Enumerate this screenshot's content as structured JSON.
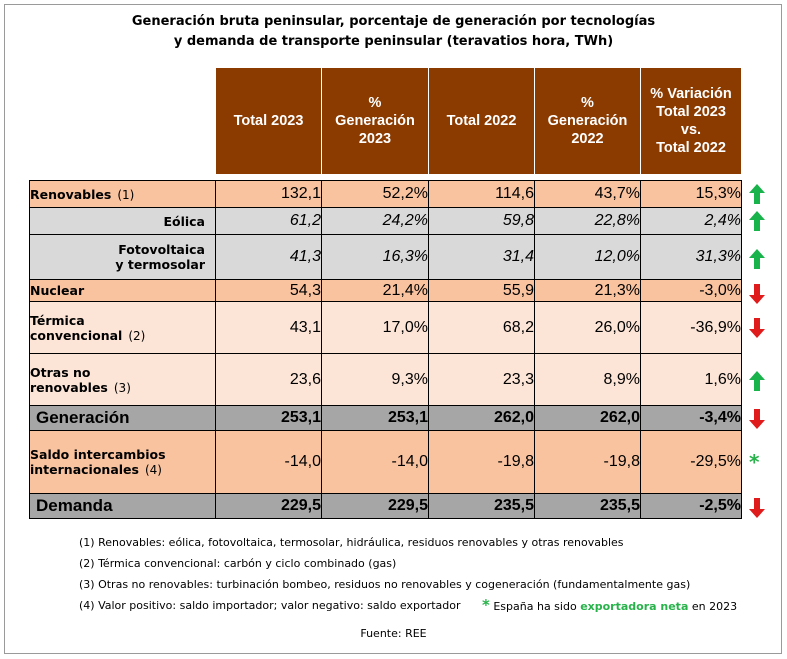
{
  "title": {
    "line1": "Generación bruta peninsular, porcentaje de generación por tecnologías",
    "line2": "y demanda de transporte peninsular (teravatios hora, TWh)"
  },
  "headers": {
    "total2023": "Total 2023",
    "pct2023": [
      "%",
      "Generación",
      "2023"
    ],
    "total2022": "Total 2022",
    "pct2022": [
      "%",
      "Generación",
      "2022"
    ],
    "variation": [
      "% Variación",
      "Total 2023",
      "vs.",
      "Total 2022"
    ]
  },
  "rows": [
    {
      "label": [
        "Renovables"
      ],
      "ref": "(1)",
      "t23": "132,1",
      "p23": "52,2%",
      "t22": "114,6",
      "p22": "43,7%",
      "var": "15,3%",
      "trend": "up"
    },
    {
      "label": [
        "Eólica"
      ],
      "ref": "",
      "t23": "61,2",
      "p23": "24,2%",
      "t22": "59,8",
      "p22": "22,8%",
      "var": "2,4%",
      "trend": "up"
    },
    {
      "label": [
        "Fotovoltaica",
        "y termosolar"
      ],
      "ref": "",
      "t23": "41,3",
      "p23": "16,3%",
      "t22": "31,4",
      "p22": "12,0%",
      "var": "31,3%",
      "trend": "up"
    },
    {
      "label": [
        "Nuclear"
      ],
      "ref": "",
      "t23": "54,3",
      "p23": "21,4%",
      "t22": "55,9",
      "p22": "21,3%",
      "var": "-3,0%",
      "trend": "down"
    },
    {
      "label": [
        "Térmica",
        "convencional"
      ],
      "ref": "(2)",
      "t23": "43,1",
      "p23": "17,0%",
      "t22": "68,2",
      "p22": "26,0%",
      "var": "-36,9%",
      "trend": "down"
    },
    {
      "label": [
        "Otras no",
        "renovables"
      ],
      "ref": "(3)",
      "t23": "23,6",
      "p23": "9,3%",
      "t22": "23,3",
      "p22": "8,9%",
      "var": "1,6%",
      "trend": "up"
    },
    {
      "label": [
        "Generación"
      ],
      "ref": "",
      "t23": "253,1",
      "p23": "253,1",
      "t22": "262,0",
      "p22": "262,0",
      "var": "-3,4%",
      "trend": "down"
    },
    {
      "label": [
        "Saldo intercambios",
        "internacionales"
      ],
      "ref": "(4)",
      "t23": "-14,0",
      "p23": "-14,0",
      "t22": "-19,8",
      "p22": "-19,8",
      "var": "-29,5%",
      "trend": "star"
    },
    {
      "label": [
        "Demanda"
      ],
      "ref": "",
      "t23": "229,5",
      "p23": "229,5",
      "t22": "235,5",
      "p22": "235,5",
      "var": "-2,5%",
      "trend": "down"
    }
  ],
  "notes": {
    "n1": "(1)  Renovables: eólica, fotovoltaica, termosolar, hidráulica, residuos renovables y otras renovables",
    "n2": "(2)  Térmica convencional: carbón y ciclo combinado (gas)",
    "n3": "(3)  Otras no renovables: turbinación bombeo, residuos no renovables y cogeneración (fundamentalmente gas)",
    "n4": "(4)  Valor positivo: saldo importador; valor negativo: saldo exportador",
    "star": "*",
    "star_pre": "España ha sido",
    "star_mid": "exportadora neta",
    "star_post": "en 2023"
  },
  "source": "Fuente: REE",
  "colors": {
    "header_bg": "#8b3a00",
    "renovables_bg": "#f9c3a0",
    "sub_bg": "#d9d9d9",
    "light_bg": "#fce4d6",
    "total_bg": "#a6a6a6",
    "up_arrow": "#18b34a",
    "down_arrow": "#e01b1b"
  }
}
